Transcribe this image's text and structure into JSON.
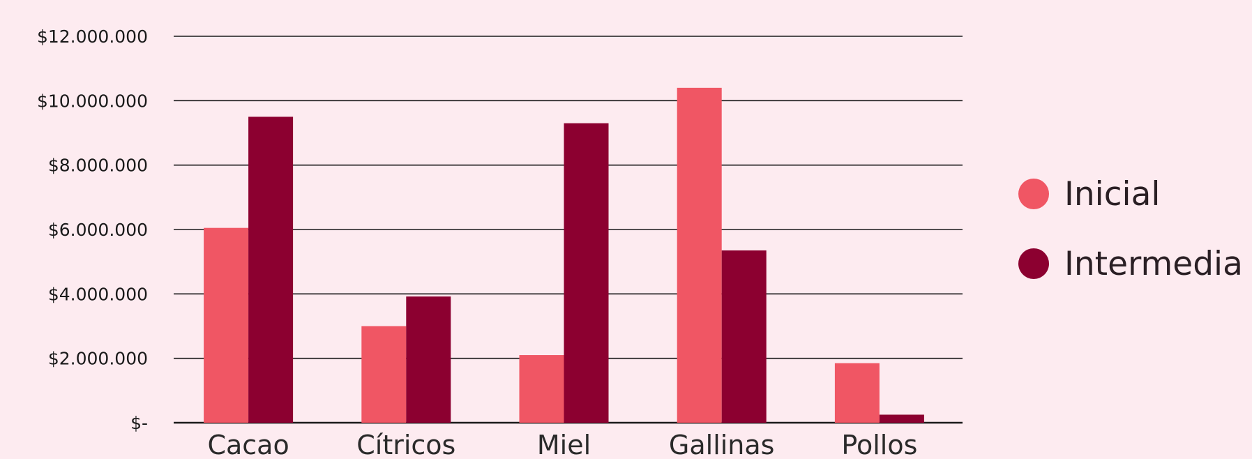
{
  "chart_data": {
    "type": "bar",
    "title": "",
    "xlabel": "",
    "ylabel": "",
    "categories": [
      "Cacao",
      "Cítricos",
      "Miel",
      "Gallinas",
      "Pollos"
    ],
    "series": [
      {
        "name": "Inicial",
        "color": "#f05664",
        "values": [
          6050000,
          3000000,
          2100000,
          10400000,
          1850000
        ]
      },
      {
        "name": "Intermedia",
        "color": "#8c0030",
        "values": [
          9500000,
          3920000,
          9300000,
          5350000,
          250000
        ]
      }
    ],
    "ylim": [
      0,
      12000000
    ],
    "ytick_values": [
      0,
      2000000,
      4000000,
      6000000,
      8000000,
      10000000,
      12000000
    ],
    "ytick_labels": [
      "$-",
      "$2.000.000",
      "$4.000.000",
      "$6.000.000",
      "$8.000.000",
      "$10.000.000",
      "$12.000.000"
    ],
    "grid": true,
    "legend_position": "right"
  }
}
